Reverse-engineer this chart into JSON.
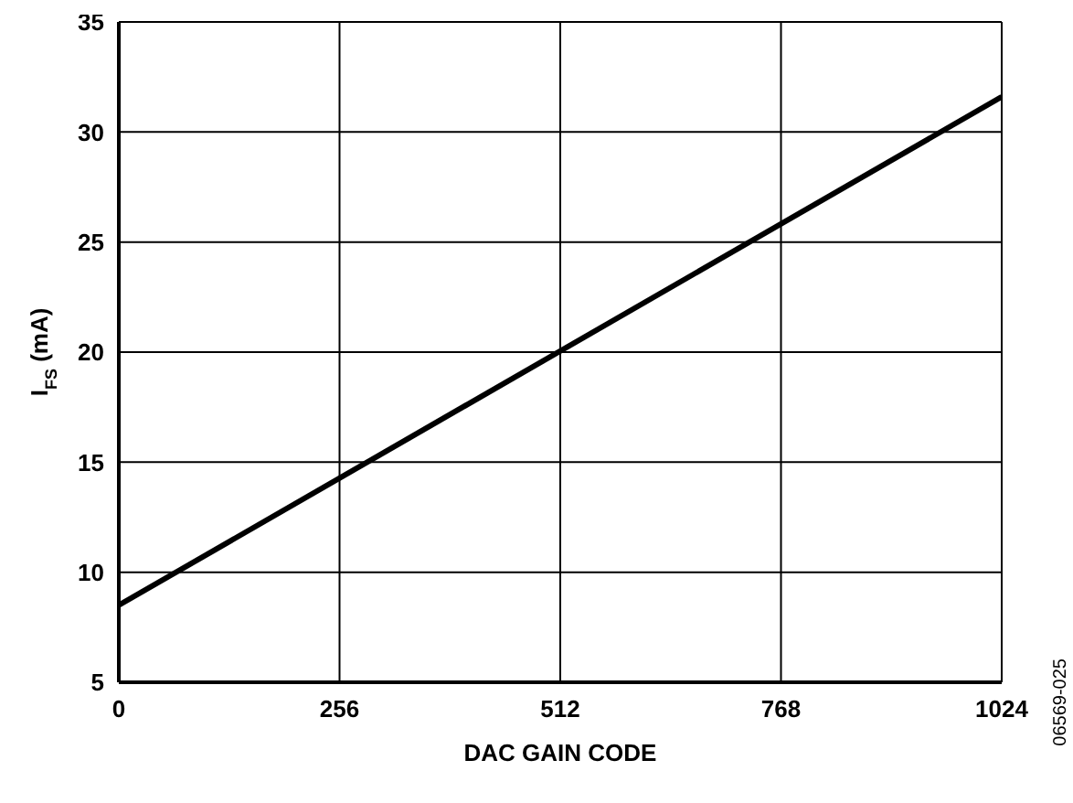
{
  "chart_data": {
    "type": "line",
    "xlabel": "DAC GAIN CODE",
    "ylabel": "I$_{FS}$ (mA)",
    "x": [
      0,
      1024
    ],
    "series": [
      {
        "color": "#000000",
        "values": [
          8.5,
          31.6
        ]
      }
    ],
    "xlim": [
      0,
      1024
    ],
    "xticks": [
      0,
      256,
      512,
      768,
      1024
    ],
    "ylim": [
      5,
      35
    ],
    "yticks": [
      5,
      10,
      15,
      20,
      25,
      30,
      35
    ],
    "grid": true,
    "marker": "none",
    "line_style": "solid",
    "annotations": [
      "06569-025"
    ]
  }
}
